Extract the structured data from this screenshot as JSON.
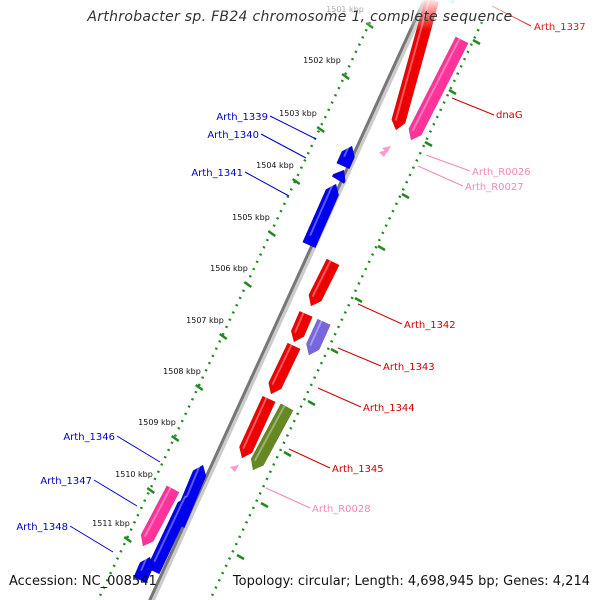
{
  "title": "Arthrobacter sp. FB24 chromosome 1, complete sequence",
  "footer": {
    "accession": "Accession: NC_008541",
    "info": "Topology: circular; Length: 4,698,945 bp; Genes: 4,214"
  },
  "colors": {
    "forward_cds": "#ee0000",
    "reverse_cds": "#0000ee",
    "rna": "#ff3399",
    "rrna_light": "#ff99cc",
    "lavender": "#7766dd",
    "olive": "#668822",
    "cyan": "#22bbee",
    "backbone": "#777777",
    "tick": "#228822",
    "forward_label": "#cc0000",
    "reverse_label": "#0000cc",
    "rna_label": "#ee88bb"
  },
  "kbp_ticks": [
    "1501 kbp",
    "1502 kbp",
    "1503 kbp",
    "1504 kbp",
    "1505 kbp",
    "1506 kbp",
    "1507 kbp",
    "1508 kbp",
    "1509 kbp",
    "1510 kbp",
    "1511 kbp"
  ],
  "gene_labels": {
    "forward": [
      "Arth_1337",
      "dnaG",
      "Arth_1342",
      "Arth_1343",
      "Arth_1344",
      "Arth_1345"
    ],
    "reverse": [
      "Arth_1339",
      "Arth_1340",
      "Arth_1341",
      "Arth_1346",
      "Arth_1347",
      "Arth_1348"
    ],
    "rna": [
      "Arth_R0026",
      "Arth_R0027",
      "Arth_R0028"
    ]
  }
}
